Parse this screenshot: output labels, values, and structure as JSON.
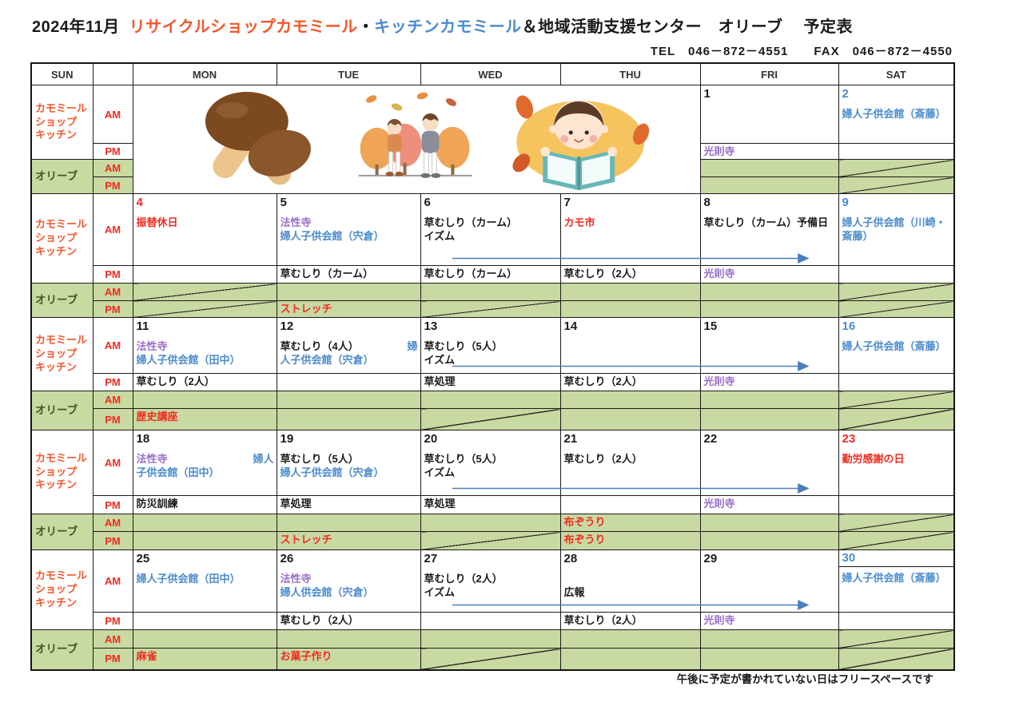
{
  "title": {
    "month": "2024年11月",
    "shop": "リサイクルショップカモミール",
    "separator": "・",
    "kitchen": "キッチンカモミール",
    "rest": "＆地域活動支援センター　オリーブ",
    "sheet": "予定表"
  },
  "contact": {
    "text": "TEL　046－872－4551　　FAX　046－872－4550"
  },
  "weekday_header": [
    "SUN",
    "MON",
    "TUE",
    "WED",
    "THU",
    "FRI",
    "SAT"
  ],
  "row_labels": {
    "chamomile_lines": [
      "カモミール",
      "ショップ",
      "キッチン"
    ],
    "olive": "オリーブ",
    "am": "AM",
    "pm": "PM"
  },
  "colors": {
    "red": "#f02c21",
    "orange": "#f4572c",
    "blue": "#4b8bcd",
    "purple": "#9b6ec9",
    "black": "#1a1a1a",
    "olive_bg": "#c8d9a1",
    "olive_text": "#3c5b21",
    "arrow": "#4a7ebc"
  },
  "illustrations": [
    "mushrooms-illustration",
    "autumn-walk-illustration",
    "child-reading-illustration"
  ],
  "weeks": [
    {
      "merged_illustration": true,
      "days": [
        {
          "num": "1",
          "num_color": "black",
          "am": [],
          "pm": [
            {
              "t": "光則寺",
              "c": "purple"
            }
          ],
          "olive_am": "plain",
          "olive_pm": "plain"
        },
        {
          "num": "2",
          "num_color": "blue",
          "am": [
            [
              {
                "t": "婦人子供会館（斎藤）",
                "c": "blue"
              }
            ]
          ],
          "pm": [],
          "olive_am": "diag",
          "olive_pm": "diag"
        }
      ]
    },
    {
      "days": [
        {
          "num": "4",
          "num_color": "red",
          "am": [
            [
              {
                "t": "振替休日",
                "c": "red"
              }
            ]
          ],
          "pm": [],
          "olive_am": "diag",
          "olive_pm": "diag"
        },
        {
          "num": "5",
          "num_color": "black",
          "am": [
            [
              {
                "t": "法性寺",
                "c": "purple"
              }
            ],
            [
              {
                "t": "婦人子供会館（宍倉）",
                "c": "blue"
              }
            ]
          ],
          "pm": [
            {
              "t": "草むしり（カーム）",
              "c": "black"
            }
          ],
          "olive_am": "plain",
          "olive_pm": {
            "t": "ストレッチ",
            "c": "red"
          }
        },
        {
          "num": "6",
          "num_color": "black",
          "am": [
            [
              {
                "t": "草むしり（カーム）",
                "c": "black"
              }
            ],
            [
              {
                "t": "イズム",
                "c": "black"
              }
            ]
          ],
          "pm": [
            {
              "t": "草むしり（カーム）",
              "c": "black"
            }
          ],
          "olive_am": "plain",
          "olive_pm": "diag"
        },
        {
          "num": "7",
          "num_color": "black",
          "am": [
            [
              {
                "t": "カモ市",
                "c": "red"
              }
            ]
          ],
          "pm": [
            {
              "t": "草むしり（2人）",
              "c": "black"
            }
          ],
          "olive_am": "plain",
          "olive_pm": "plain"
        },
        {
          "num": "8",
          "num_color": "black",
          "am": [
            [
              {
                "t": "草むしり（カーム）予備日",
                "c": "black"
              }
            ]
          ],
          "pm": [
            {
              "t": "光則寺",
              "c": "purple"
            }
          ],
          "olive_am": "plain",
          "olive_pm": "plain"
        },
        {
          "num": "9",
          "num_color": "blue",
          "am": [
            [
              {
                "t": "婦人子供会館（川崎・斎藤）",
                "c": "blue"
              }
            ]
          ],
          "pm": [],
          "olive_am": "diag",
          "olive_pm": "diag"
        }
      ]
    },
    {
      "days": [
        {
          "num": "11",
          "num_color": "black",
          "am": [
            [
              {
                "t": "法性寺",
                "c": "purple"
              }
            ],
            [
              {
                "t": "婦人子供会館（田中）",
                "c": "blue"
              }
            ]
          ],
          "pm": [
            {
              "t": "草むしり（2人）",
              "c": "black"
            }
          ],
          "olive_am": "plain",
          "olive_pm": {
            "t": "歴史講座",
            "c": "red"
          }
        },
        {
          "num": "12",
          "num_color": "black",
          "am": [
            [
              {
                "t": "草むしり（4人）",
                "c": "black"
              },
              {
                "t": "婦",
                "c": "blue",
                "right": true
              }
            ],
            [
              {
                "t": "人子供会館（宍倉）",
                "c": "blue"
              }
            ]
          ],
          "pm": [],
          "olive_am": "plain",
          "olive_pm": "plain"
        },
        {
          "num": "13",
          "num_color": "black",
          "am": [
            [
              {
                "t": "草むしり（5人）",
                "c": "black"
              }
            ],
            [
              {
                "t": "イズム",
                "c": "black"
              }
            ]
          ],
          "pm": [
            {
              "t": "草処理",
              "c": "black"
            }
          ],
          "olive_am": "plain",
          "olive_pm": "diag"
        },
        {
          "num": "14",
          "num_color": "black",
          "am": [],
          "pm": [
            {
              "t": "草むしり（2人）",
              "c": "black"
            }
          ],
          "olive_am": "plain",
          "olive_pm": "plain"
        },
        {
          "num": "15",
          "num_color": "black",
          "am": [],
          "pm": [
            {
              "t": "光則寺",
              "c": "purple"
            }
          ],
          "olive_am": "plain",
          "olive_pm": "plain"
        },
        {
          "num": "16",
          "num_color": "blue",
          "am": [
            [
              {
                "t": "婦人子供会館（斎藤）",
                "c": "blue"
              }
            ]
          ],
          "pm": [],
          "olive_am": "diag",
          "olive_pm": "diag"
        }
      ]
    },
    {
      "days": [
        {
          "num": "18",
          "num_color": "black",
          "am": [
            [
              {
                "t": "法性寺",
                "c": "purple"
              },
              {
                "t": "婦人",
                "c": "blue",
                "right": true
              }
            ],
            [
              {
                "t": "子供会館（田中）",
                "c": "blue"
              }
            ]
          ],
          "pm": [
            {
              "t": "防災訓練",
              "c": "black"
            }
          ],
          "olive_am": "plain",
          "olive_pm": "plain"
        },
        {
          "num": "19",
          "num_color": "black",
          "am": [
            [
              {
                "t": "草むしり（5人）",
                "c": "black"
              }
            ],
            [
              {
                "t": "婦人子供会館（宍倉）",
                "c": "blue"
              }
            ]
          ],
          "pm": [
            {
              "t": "草処理",
              "c": "black"
            }
          ],
          "olive_am": "plain",
          "olive_pm": {
            "t": "ストレッチ",
            "c": "red"
          }
        },
        {
          "num": "20",
          "num_color": "black",
          "am": [
            [
              {
                "t": "草むしり（5人）",
                "c": "black"
              }
            ],
            [
              {
                "t": "イズム",
                "c": "black"
              }
            ]
          ],
          "pm": [
            {
              "t": "草処理",
              "c": "black"
            }
          ],
          "olive_am": "plain",
          "olive_pm": "diag"
        },
        {
          "num": "21",
          "num_color": "black",
          "am": [
            [
              {
                "t": "草むしり（2人）",
                "c": "black"
              }
            ]
          ],
          "pm": [],
          "olive_am": {
            "t": "布ぞうり",
            "c": "red"
          },
          "olive_pm": {
            "t": "布ぞうり",
            "c": "red"
          }
        },
        {
          "num": "22",
          "num_color": "black",
          "am": [],
          "pm": [
            {
              "t": "光則寺",
              "c": "purple"
            }
          ],
          "olive_am": "plain",
          "olive_pm": "plain"
        },
        {
          "num": "23",
          "num_color": "red",
          "am": [
            [
              {
                "t": "勤労感謝の日",
                "c": "red"
              }
            ]
          ],
          "pm": [],
          "olive_am": "diag",
          "olive_pm": "diag"
        }
      ]
    },
    {
      "days": [
        {
          "num": "25",
          "num_color": "black",
          "am": [
            [
              {
                "t": "婦人子供会館（田中）",
                "c": "blue"
              }
            ]
          ],
          "pm": [],
          "olive_am": "plain",
          "olive_pm": {
            "t": "麻雀",
            "c": "red"
          }
        },
        {
          "num": "26",
          "num_color": "black",
          "am": [
            [
              {
                "t": "法性寺",
                "c": "purple"
              }
            ],
            [
              {
                "t": "婦人供会館（宍倉）",
                "c": "blue"
              }
            ]
          ],
          "pm": [
            {
              "t": "草むしり（2人）",
              "c": "black"
            }
          ],
          "olive_am": "plain",
          "olive_pm": {
            "t": "お菓子作り",
            "c": "red"
          }
        },
        {
          "num": "27",
          "num_color": "black",
          "am": [
            [
              {
                "t": "草むしり（2人）",
                "c": "black"
              }
            ],
            [
              {
                "t": "イズム",
                "c": "black"
              }
            ]
          ],
          "pm": [],
          "olive_am": "plain",
          "olive_pm": "diag"
        },
        {
          "num": "28",
          "num_color": "black",
          "am": [
            [],
            [
              {
                "t": "広報",
                "c": "black"
              }
            ]
          ],
          "pm": [
            {
              "t": "草むしり（2人）",
              "c": "black"
            }
          ],
          "olive_am": "plain",
          "olive_pm": "plain"
        },
        {
          "num": "29",
          "num_color": "black",
          "am": [],
          "pm": [
            {
              "t": "光則寺",
              "c": "purple"
            }
          ],
          "olive_am": "plain",
          "olive_pm": "plain"
        },
        {
          "num": "30",
          "num_color": "blue",
          "num_divider": true,
          "am": [
            [
              {
                "t": "婦人子供会館（斎藤）",
                "c": "blue"
              }
            ]
          ],
          "pm": [],
          "olive_am": "diag",
          "olive_pm": "diag"
        }
      ]
    }
  ],
  "footnote": {
    "text": "午後に予定が書かれていない日はフリースペースです"
  }
}
